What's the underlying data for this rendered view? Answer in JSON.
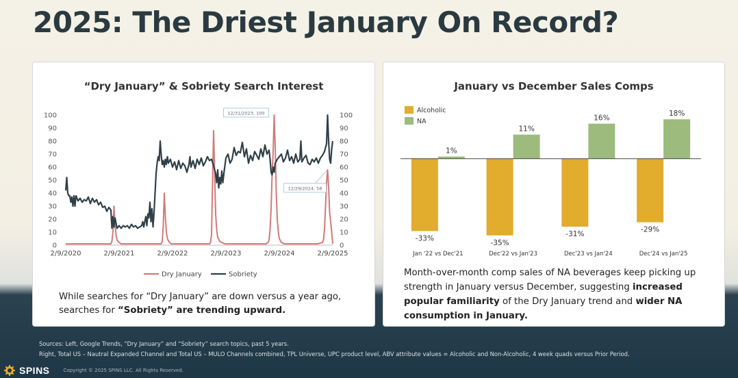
{
  "page": {
    "title": "2025: The Driest January On Record?"
  },
  "left_card": {
    "title": "“Dry January” & Sobriety Search Interest",
    "text_plain_1": "While searches for “Dry January” are down versus a year ago,",
    "text_plain_2": "searches for ",
    "text_bold": "“Sobriety” are trending upward."
  },
  "right_card": {
    "title": "January vs December Sales Comps",
    "text_1": "Month-over-month comp sales of NA beverages keep picking up strength in January versus December, suggesting ",
    "text_bold_1": "increased popular familiarity",
    "text_2": " of the Dry January trend and ",
    "text_bold_2": "wider NA consumption in January."
  },
  "footer": {
    "sources_line1": "Sources: Left, Google Trends, “Dry January” and “Sobriety” search topics, past 5 years.",
    "sources_line2": "Right, Total US – Nautral Expanded Channel and Total US – MULO Channels combined, TPL Universe, UPC product level, ABV attribute values = Alcoholic and Non-Alcoholic, 4 week quads versus Prior Period.",
    "logo": "SPINS",
    "copyright": "Copyright © 2025 SPINS LLC. All Rights Reserved."
  },
  "chart_data": [
    {
      "type": "line",
      "title": "“Dry January” & Sobriety Search Interest",
      "ylim": [
        0,
        100
      ],
      "yticks": [
        0,
        10,
        20,
        30,
        40,
        50,
        60,
        70,
        80,
        90,
        100
      ],
      "xlim": [
        0,
        260
      ],
      "xtick_positions": [
        0,
        52,
        104,
        156,
        208,
        260
      ],
      "xticks": [
        "2/9/2020",
        "2/9/2021",
        "2/9/2022",
        "2/9/2023",
        "2/9/2024",
        "2/9/2025"
      ],
      "annotations": [
        {
          "label": "12/31/2023, 100",
          "x": 203,
          "y": 100
        },
        {
          "label": "12/29/2024, 58",
          "x": 255,
          "y": 58
        }
      ],
      "series": [
        {
          "name": "Dry January",
          "color": "#d07a78",
          "points": [
            [
              0,
              1
            ],
            [
              5,
              1
            ],
            [
              10,
              1
            ],
            [
              20,
              1
            ],
            [
              30,
              1
            ],
            [
              40,
              1
            ],
            [
              44,
              1
            ],
            [
              45,
              3
            ],
            [
              46,
              10
            ],
            [
              47,
              30
            ],
            [
              48,
              16
            ],
            [
              49,
              8
            ],
            [
              50,
              4
            ],
            [
              52,
              2
            ],
            [
              54,
              1
            ],
            [
              60,
              1
            ],
            [
              70,
              1
            ],
            [
              80,
              1
            ],
            [
              90,
              1
            ],
            [
              93,
              1
            ],
            [
              94,
              3
            ],
            [
              95,
              15
            ],
            [
              96,
              40
            ],
            [
              97,
              22
            ],
            [
              98,
              10
            ],
            [
              99,
              5
            ],
            [
              101,
              2
            ],
            [
              103,
              1
            ],
            [
              110,
              1
            ],
            [
              120,
              1
            ],
            [
              130,
              1
            ],
            [
              140,
              1
            ],
            [
              141,
              2
            ],
            [
              142,
              8
            ],
            [
              143,
              50
            ],
            [
              144,
              88
            ],
            [
              145,
              55
            ],
            [
              146,
              24
            ],
            [
              147,
              12
            ],
            [
              148,
              6
            ],
            [
              150,
              3
            ],
            [
              152,
              2
            ],
            [
              155,
              1
            ],
            [
              165,
              1
            ],
            [
              175,
              1
            ],
            [
              185,
              1
            ],
            [
              195,
              1
            ],
            [
              197,
              2
            ],
            [
              198,
              4
            ],
            [
              199,
              12
            ],
            [
              200,
              28
            ],
            [
              201,
              55
            ],
            [
              202,
              72
            ],
            [
              203,
              100
            ],
            [
              204,
              75
            ],
            [
              205,
              40
            ],
            [
              206,
              20
            ],
            [
              207,
              10
            ],
            [
              208,
              5
            ],
            [
              210,
              2
            ],
            [
              213,
              1
            ],
            [
              225,
              1
            ],
            [
              235,
              1
            ],
            [
              245,
              1
            ],
            [
              250,
              2
            ],
            [
              251,
              4
            ],
            [
              252,
              12
            ],
            [
              253,
              30
            ],
            [
              254,
              48
            ],
            [
              255,
              58
            ],
            [
              256,
              45
            ],
            [
              257,
              25
            ],
            [
              258,
              18
            ],
            [
              259,
              10
            ],
            [
              260,
              1
            ]
          ]
        },
        {
          "name": "Sobriety",
          "color": "#2f3f48",
          "points": [
            [
              0,
              42
            ],
            [
              1,
              52
            ],
            [
              2,
              40
            ],
            [
              3,
              38
            ],
            [
              4,
              38
            ],
            [
              5,
              33
            ],
            [
              6,
              37
            ],
            [
              7,
              30
            ],
            [
              8,
              38
            ],
            [
              9,
              30
            ],
            [
              10,
              38
            ],
            [
              12,
              34
            ],
            [
              14,
              36
            ],
            [
              16,
              33
            ],
            [
              18,
              35
            ],
            [
              20,
              34
            ],
            [
              22,
              37
            ],
            [
              24,
              32
            ],
            [
              26,
              36
            ],
            [
              28,
              33
            ],
            [
              30,
              35
            ],
            [
              32,
              31
            ],
            [
              34,
              33
            ],
            [
              36,
              29
            ],
            [
              38,
              30
            ],
            [
              40,
              26
            ],
            [
              42,
              29
            ],
            [
              44,
              27
            ],
            [
              45,
              13
            ],
            [
              46,
              22
            ],
            [
              47,
              14
            ],
            [
              48,
              21
            ],
            [
              50,
              13
            ],
            [
              52,
              15
            ],
            [
              54,
              13
            ],
            [
              56,
              15
            ],
            [
              58,
              14
            ],
            [
              60,
              15
            ],
            [
              62,
              13
            ],
            [
              64,
              16
            ],
            [
              66,
              14
            ],
            [
              68,
              15
            ],
            [
              70,
              13
            ],
            [
              72,
              14
            ],
            [
              74,
              15
            ],
            [
              75,
              18
            ],
            [
              76,
              14
            ],
            [
              78,
              22
            ],
            [
              79,
              15
            ],
            [
              80,
              24
            ],
            [
              81,
              21
            ],
            [
              82,
              33
            ],
            [
              83,
              18
            ],
            [
              84,
              28
            ],
            [
              85,
              14
            ],
            [
              86,
              25
            ],
            [
              87,
              40
            ],
            [
              88,
              55
            ],
            [
              89,
              63
            ],
            [
              90,
              68
            ],
            [
              91,
              65
            ],
            [
              92,
              80
            ],
            [
              93,
              69
            ],
            [
              94,
              62
            ],
            [
              95,
              65
            ],
            [
              96,
              60
            ],
            [
              97,
              66
            ],
            [
              98,
              62
            ],
            [
              99,
              68
            ],
            [
              100,
              63
            ],
            [
              102,
              66
            ],
            [
              104,
              60
            ],
            [
              106,
              64
            ],
            [
              108,
              58
            ],
            [
              110,
              65
            ],
            [
              112,
              59
            ],
            [
              114,
              63
            ],
            [
              116,
              61
            ],
            [
              118,
              56
            ],
            [
              120,
              62
            ],
            [
              121,
              68
            ],
            [
              122,
              60
            ],
            [
              124,
              65
            ],
            [
              126,
              59
            ],
            [
              128,
              66
            ],
            [
              130,
              62
            ],
            [
              132,
              67
            ],
            [
              134,
              61
            ],
            [
              136,
              64
            ],
            [
              138,
              68
            ],
            [
              140,
              65
            ],
            [
              142,
              66
            ],
            [
              144,
              61
            ],
            [
              146,
              55
            ],
            [
              147,
              48
            ],
            [
              148,
              58
            ],
            [
              149,
              44
            ],
            [
              150,
              52
            ],
            [
              151,
              47
            ],
            [
              152,
              57
            ],
            [
              153,
              48
            ],
            [
              154,
              55
            ],
            [
              156,
              67
            ],
            [
              158,
              70
            ],
            [
              160,
              63
            ],
            [
              162,
              66
            ],
            [
              164,
              75
            ],
            [
              166,
              69
            ],
            [
              168,
              72
            ],
            [
              170,
              71
            ],
            [
              172,
              79
            ],
            [
              174,
              68
            ],
            [
              176,
              74
            ],
            [
              178,
              63
            ],
            [
              180,
              69
            ],
            [
              182,
              65
            ],
            [
              184,
              72
            ],
            [
              186,
              69
            ],
            [
              188,
              66
            ],
            [
              190,
              74
            ],
            [
              192,
              68
            ],
            [
              194,
              77
            ],
            [
              196,
              70
            ],
            [
              198,
              73
            ],
            [
              199,
              66
            ],
            [
              200,
              56
            ],
            [
              201,
              54
            ],
            [
              202,
              60
            ],
            [
              203,
              56
            ],
            [
              204,
              63
            ],
            [
              206,
              66
            ],
            [
              208,
              68
            ],
            [
              210,
              70
            ],
            [
              212,
              64
            ],
            [
              214,
              67
            ],
            [
              216,
              73
            ],
            [
              218,
              65
            ],
            [
              220,
              68
            ],
            [
              222,
              63
            ],
            [
              224,
              70
            ],
            [
              226,
              64
            ],
            [
              228,
              66
            ],
            [
              229,
              80
            ],
            [
              230,
              64
            ],
            [
              232,
              67
            ],
            [
              234,
              69
            ],
            [
              236,
              63
            ],
            [
              238,
              62
            ],
            [
              240,
              66
            ],
            [
              242,
              64
            ],
            [
              244,
              67
            ],
            [
              246,
              63
            ],
            [
              248,
              67
            ],
            [
              250,
              69
            ],
            [
              252,
              72
            ],
            [
              254,
              78
            ],
            [
              255,
              100
            ],
            [
              256,
              80
            ],
            [
              257,
              66
            ],
            [
              258,
              63
            ],
            [
              259,
              74
            ],
            [
              260,
              80
            ]
          ]
        }
      ],
      "legend": [
        "Dry January",
        "Sobriety"
      ],
      "legend_position": "bottom"
    },
    {
      "type": "bar",
      "title": "January vs December Sales Comps",
      "categories": [
        "Jan '22 vs Dec'21",
        "Dec'22 vs Jan'23",
        "Dec'23 vs Jan'24",
        "Dec'24 vs Jan'25"
      ],
      "series": [
        {
          "name": "Alcoholic",
          "color": "#e2ac2c",
          "values": [
            -33,
            -35,
            -31,
            -29
          ],
          "labels": [
            "-33%",
            "-35%",
            "-31%",
            "-29%"
          ]
        },
        {
          "name": "NA",
          "color": "#9cbb7d",
          "values": [
            1,
            11,
            16,
            18
          ],
          "labels": [
            "1%",
            "11%",
            "16%",
            "18%"
          ]
        }
      ],
      "ylim": [
        -36,
        19
      ],
      "legend_position": "top-left"
    }
  ]
}
